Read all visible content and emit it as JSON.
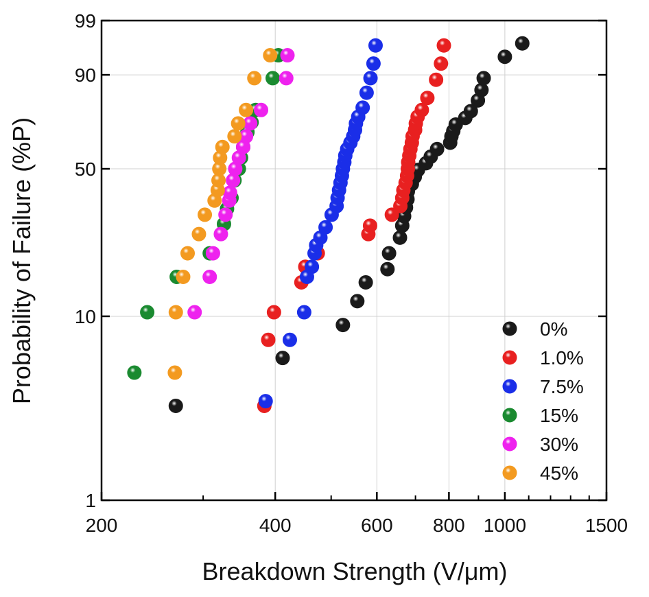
{
  "chart_data": {
    "type": "scatter",
    "title": "",
    "xlabel": "Breakdown Strength (V/μm)",
    "ylabel": "Probability of Failure (%P)",
    "x_scale": "log",
    "y_scale": "weibull-probability",
    "xlim": [
      200,
      1500
    ],
    "ylim": [
      1,
      99
    ],
    "x_ticks": [
      200,
      400,
      600,
      800,
      1000,
      1500
    ],
    "x_minor_ticks": [
      300,
      500,
      700,
      900,
      1100,
      1200,
      1300,
      1400
    ],
    "y_ticks": [
      1,
      10,
      50,
      90,
      99
    ],
    "grid": true,
    "legend_position": "bottom-right",
    "series": [
      {
        "name": "0%",
        "color": "#1a1a1a",
        "points": [
          [
            269,
            3.3
          ],
          [
            412,
            6.0
          ],
          [
            524,
            9.0
          ],
          [
            555,
            12.0
          ],
          [
            574,
            15.0
          ],
          [
            626,
            17.5
          ],
          [
            630,
            21.0
          ],
          [
            658,
            25.0
          ],
          [
            664,
            28.5
          ],
          [
            669,
            31.5
          ],
          [
            674,
            34.5
          ],
          [
            678,
            37.5
          ],
          [
            679,
            40.5
          ],
          [
            690,
            43.5
          ],
          [
            698,
            46.5
          ],
          [
            707,
            49.5
          ],
          [
            730,
            52.5
          ],
          [
            744,
            55.5
          ],
          [
            763,
            59.0
          ],
          [
            804,
            62.0
          ],
          [
            808,
            65.0
          ],
          [
            814,
            67.5
          ],
          [
            822,
            70.5
          ],
          [
            854,
            73.5
          ],
          [
            873,
            76.5
          ],
          [
            898,
            81.0
          ],
          [
            911,
            85.0
          ],
          [
            919,
            89.0
          ],
          [
            1000,
            94.5
          ],
          [
            1072,
            96.8
          ]
        ]
      },
      {
        "name": "1.0%",
        "color": "#e82020",
        "points": [
          [
            383,
            3.3
          ],
          [
            389,
            7.5
          ],
          [
            398,
            10.5
          ],
          [
            444,
            15.0
          ],
          [
            451,
            18.0
          ],
          [
            474,
            21.0
          ],
          [
            580,
            26.0
          ],
          [
            584,
            28.5
          ],
          [
            637,
            32.0
          ],
          [
            659,
            35.0
          ],
          [
            664,
            38.0
          ],
          [
            667,
            41.0
          ],
          [
            673,
            44.0
          ],
          [
            677,
            47.0
          ],
          [
            679,
            50.0
          ],
          [
            680,
            53.0
          ],
          [
            683,
            56.0
          ],
          [
            686,
            59.0
          ],
          [
            690,
            62.0
          ],
          [
            692,
            65.0
          ],
          [
            699,
            68.0
          ],
          [
            701,
            71.0
          ],
          [
            706,
            74.0
          ],
          [
            718,
            77.0
          ],
          [
            734,
            82.0
          ],
          [
            760,
            88.5
          ],
          [
            775,
            93.0
          ],
          [
            784,
            96.5
          ]
        ]
      },
      {
        "name": "7.5%",
        "color": "#1a2ee8",
        "points": [
          [
            385,
            3.5
          ],
          [
            424,
            7.5
          ],
          [
            449,
            10.5
          ],
          [
            454,
            16.0
          ],
          [
            463,
            18.0
          ],
          [
            468,
            21.0
          ],
          [
            471,
            23.0
          ],
          [
            479,
            25.0
          ],
          [
            489,
            28.0
          ],
          [
            501,
            32.0
          ],
          [
            511,
            35.0
          ],
          [
            513,
            38.0
          ],
          [
            516,
            41.0
          ],
          [
            519,
            44.0
          ],
          [
            522,
            47.0
          ],
          [
            524,
            50.0
          ],
          [
            527,
            53.0
          ],
          [
            529,
            56.0
          ],
          [
            533,
            59.0
          ],
          [
            540,
            62.0
          ],
          [
            546,
            65.0
          ],
          [
            550,
            68.0
          ],
          [
            552,
            71.0
          ],
          [
            557,
            74.0
          ],
          [
            567,
            78.0
          ],
          [
            576,
            84.0
          ],
          [
            585,
            89.0
          ],
          [
            592,
            93.0
          ],
          [
            597,
            96.5
          ]
        ]
      },
      {
        "name": "15%",
        "color": "#1a8a30",
        "points": [
          [
            228,
            5.0
          ],
          [
            240,
            10.5
          ],
          [
            270,
            16.0
          ],
          [
            308,
            21.0
          ],
          [
            326,
            29.0
          ],
          [
            330,
            34.0
          ],
          [
            336,
            38.0
          ],
          [
            340,
            45.0
          ],
          [
            346,
            50.0
          ],
          [
            349,
            55.0
          ],
          [
            352,
            60.0
          ],
          [
            358,
            67.0
          ],
          [
            364,
            71.5
          ],
          [
            370,
            77.0
          ],
          [
            396,
            89.0
          ],
          [
            405,
            94.8
          ]
        ]
      },
      {
        "name": "30%",
        "color": "#ee22ee",
        "points": [
          [
            290,
            10.5
          ],
          [
            308,
            16.0
          ],
          [
            312,
            21.0
          ],
          [
            322,
            26.0
          ],
          [
            328,
            32.0
          ],
          [
            333,
            37.0
          ],
          [
            334,
            40.0
          ],
          [
            338,
            45.0
          ],
          [
            341,
            50.0
          ],
          [
            346,
            55.0
          ],
          [
            352,
            60.0
          ],
          [
            356,
            65.0
          ],
          [
            362,
            71.0
          ],
          [
            378,
            77.0
          ],
          [
            418,
            89.0
          ],
          [
            420,
            94.8
          ]
        ]
      },
      {
        "name": "45%",
        "color": "#f39a20",
        "points": [
          [
            268,
            5.0
          ],
          [
            269,
            10.5
          ],
          [
            277,
            16.0
          ],
          [
            282,
            21.0
          ],
          [
            295,
            26.0
          ],
          [
            302,
            32.0
          ],
          [
            314,
            37.0
          ],
          [
            318,
            41.0
          ],
          [
            319,
            45.0
          ],
          [
            320,
            50.0
          ],
          [
            321,
            55.0
          ],
          [
            324,
            60.0
          ],
          [
            340,
            65.0
          ],
          [
            345,
            71.0
          ],
          [
            356,
            77.0
          ],
          [
            368,
            89.0
          ],
          [
            392,
            94.8
          ]
        ]
      }
    ]
  }
}
